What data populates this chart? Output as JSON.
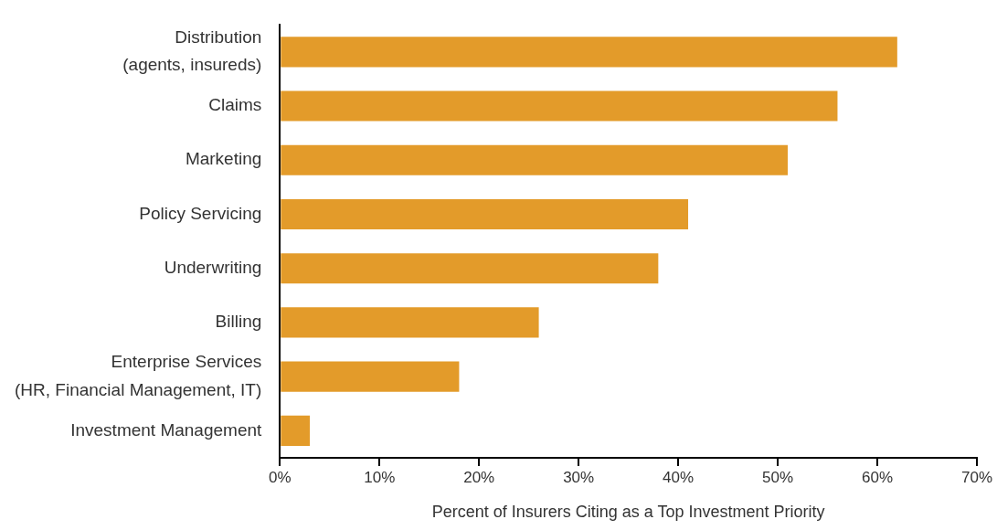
{
  "chart_data": {
    "type": "bar",
    "orientation": "horizontal",
    "xlabel": "Percent of Insurers Citing as a Top Investment Priority",
    "categories": [
      "Distribution (agents, insureds)",
      "Claims",
      "Marketing",
      "Policy Servicing",
      "Underwriting",
      "Billing",
      "Enterprise Services (HR, Financial Management, IT)",
      "Investment Management"
    ],
    "values": [
      62,
      56,
      51,
      41,
      38,
      26,
      18,
      3
    ],
    "color": "#e39b2a",
    "xlim": [
      0,
      70
    ],
    "xticks": [
      {
        "value": 0,
        "label": "0%"
      },
      {
        "value": 10,
        "label": "10%"
      },
      {
        "value": 20,
        "label": "20%"
      },
      {
        "value": 30,
        "label": "30%"
      },
      {
        "value": 40,
        "label": "40%"
      },
      {
        "value": 50,
        "label": "50%"
      },
      {
        "value": 60,
        "label": "60%"
      },
      {
        "value": 70,
        "label": "70%"
      }
    ]
  }
}
